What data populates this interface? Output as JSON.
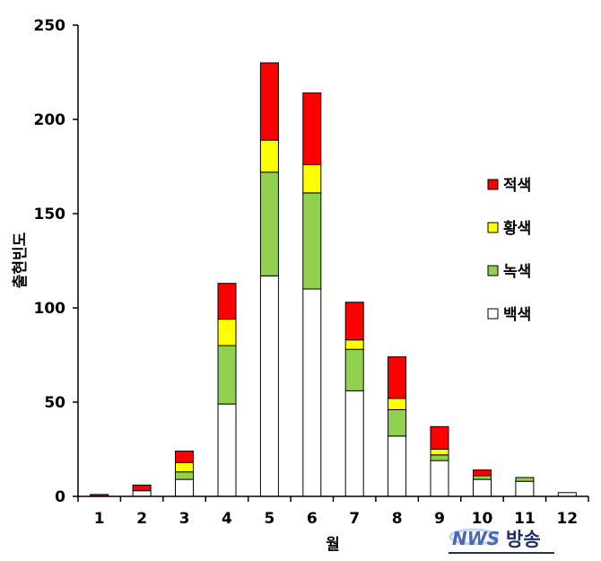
{
  "chart_data": {
    "type": "bar",
    "stacked": true,
    "categories": [
      "1",
      "2",
      "3",
      "4",
      "5",
      "6",
      "7",
      "8",
      "9",
      "10",
      "11",
      "12"
    ],
    "series": [
      {
        "name": "백색",
        "color": "#ffffff",
        "values": [
          0,
          3,
          9,
          49,
          117,
          110,
          56,
          32,
          19,
          9,
          8,
          2
        ]
      },
      {
        "name": "녹색",
        "color": "#92d050",
        "values": [
          0,
          0,
          4,
          31,
          55,
          51,
          22,
          14,
          3,
          2,
          2,
          0
        ]
      },
      {
        "name": "황색",
        "color": "#ffff00",
        "values": [
          0,
          0,
          5,
          14,
          17,
          15,
          5,
          6,
          3,
          0,
          0,
          0
        ]
      },
      {
        "name": "적색",
        "color": "#ff0000",
        "values": [
          1,
          3,
          6,
          19,
          41,
          38,
          20,
          22,
          12,
          3,
          0,
          0
        ]
      }
    ],
    "legend_order": [
      "적색",
      "황색",
      "녹색",
      "백색"
    ],
    "xlabel": "월",
    "ylabel": "출현빈도",
    "ylim": [
      0,
      250
    ],
    "yticks": [
      "0",
      "50",
      "100",
      "150",
      "200",
      "250"
    ],
    "grid": false,
    "legend_position": "right"
  },
  "watermark": {
    "logo_text": "NWS",
    "text": "방송"
  }
}
